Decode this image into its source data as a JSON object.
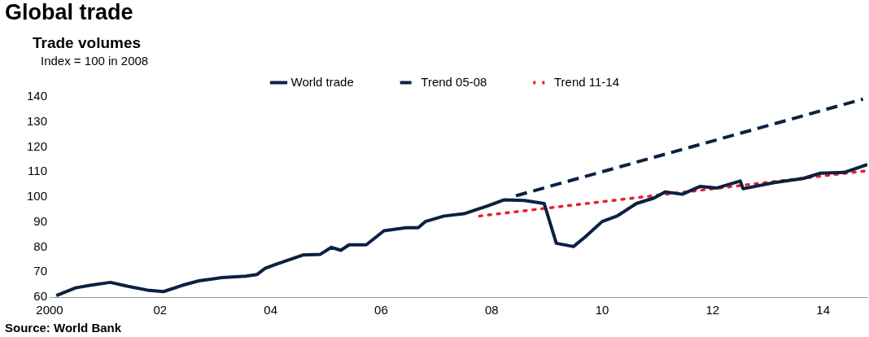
{
  "chart_data": {
    "type": "line",
    "title": "Global trade",
    "subtitle": "Trade volumes",
    "annotations": [
      "Index = 100 in 2008",
      "Source: World Bank"
    ],
    "xlim": [
      2000,
      2014.8
    ],
    "xticks": [
      2000,
      {
        "value": 2002,
        "label": "02"
      },
      {
        "value": 2004,
        "label": "04"
      },
      {
        "value": 2006,
        "label": "06"
      },
      {
        "value": 2008,
        "label": "08"
      },
      {
        "value": 2010,
        "label": "10"
      },
      {
        "value": 2012,
        "label": "12"
      },
      {
        "value": 2014,
        "label": "14"
      }
    ],
    "ylim": [
      60,
      140
    ],
    "yticks": [
      60,
      70,
      80,
      90,
      100,
      110,
      120,
      130,
      140
    ],
    "grid": false,
    "legend": "top",
    "marker": "none",
    "series": [
      {
        "name": "World trade",
        "color": "#0b2140",
        "line_style": "solid",
        "x": [
          2000.12,
          2000.47,
          2000.73,
          2001.1,
          2001.4,
          2001.77,
          2002.06,
          2002.4,
          2002.7,
          2003.12,
          2003.55,
          2003.75,
          2003.9,
          2004.1,
          2004.58,
          2004.9,
          2005.1,
          2005.27,
          2005.42,
          2005.73,
          2006.05,
          2006.45,
          2006.67,
          2006.8,
          2007.14,
          2007.5,
          2007.92,
          2008.23,
          2008.59,
          2008.95,
          2009.17,
          2009.48,
          2009.69,
          2010.0,
          2010.27,
          2010.62,
          2010.94,
          2011.14,
          2011.45,
          2011.77,
          2012.08,
          2012.5,
          2012.55,
          2013.12,
          2013.64,
          2013.95,
          2014.38,
          2014.8
        ],
        "values": [
          60.6,
          63.7,
          64.7,
          65.9,
          64.4,
          62.8,
          62.2,
          64.7,
          66.5,
          67.8,
          68.4,
          69,
          71.5,
          73.1,
          76.8,
          77.1,
          79.9,
          78.7,
          80.9,
          80.9,
          86.5,
          87.7,
          87.7,
          90.2,
          92.4,
          93.3,
          96.4,
          98.9,
          98.6,
          97.4,
          81.5,
          80.2,
          84,
          90.2,
          92.4,
          97.4,
          99.6,
          102,
          101.1,
          104.2,
          103.6,
          106.4,
          103.3,
          105.8,
          107.4,
          109.5,
          109.8,
          113
        ]
      },
      {
        "name": "Trend 05-08",
        "color": "#0b2140",
        "line_style": "dashed",
        "x": [
          2008.44,
          2014.72
        ],
        "values": [
          100.5,
          139.1
        ]
      },
      {
        "name": "Trend 11-14",
        "color": "#e8212e",
        "line_style": "dotted",
        "x": [
          2007.78,
          2014.8
        ],
        "values": [
          92.4,
          110.5
        ]
      }
    ]
  }
}
